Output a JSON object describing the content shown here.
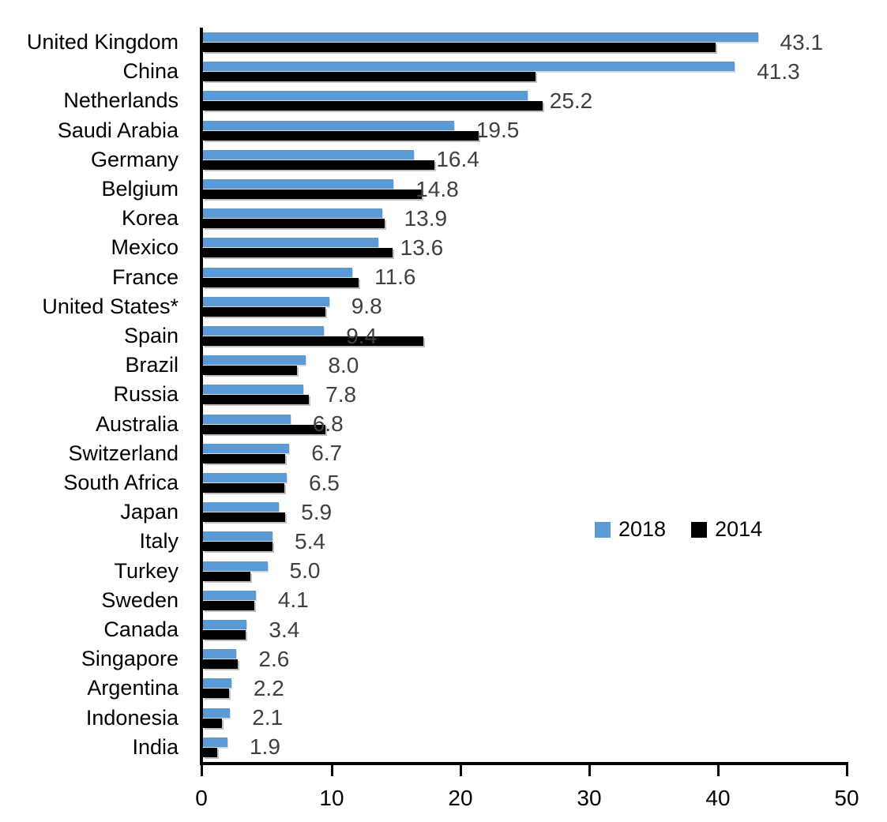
{
  "chart_data": {
    "type": "bar",
    "orientation": "horizontal",
    "title": "",
    "xlabel": "",
    "ylabel": "",
    "xlim": [
      0,
      50
    ],
    "x_ticks": [
      "0",
      "10",
      "20",
      "30",
      "40",
      "50"
    ],
    "grid": false,
    "legend_position": "center-right",
    "categories": [
      "United Kingdom",
      "China",
      "Netherlands",
      "Saudi Arabia",
      "Germany",
      "Belgium",
      "Korea",
      "Mexico",
      "France",
      "United States*",
      "Spain",
      "Brazil",
      "Russia",
      "Australia",
      "Switzerland",
      "South Africa",
      "Japan",
      "Italy",
      "Turkey",
      "Sweden",
      "Canada",
      "Singapore",
      "Argentina",
      "Indonesia",
      "India"
    ],
    "series": [
      {
        "name": "2018",
        "color": "#5B9BD5",
        "values": [
          43.1,
          41.3,
          25.2,
          19.5,
          16.4,
          14.8,
          13.9,
          13.6,
          11.6,
          9.8,
          9.4,
          8.0,
          7.8,
          6.8,
          6.7,
          6.5,
          5.9,
          5.4,
          5.0,
          4.1,
          3.4,
          2.6,
          2.2,
          2.1,
          1.9
        ]
      },
      {
        "name": "2014",
        "color": "#000000",
        "values": [
          39.8,
          25.8,
          26.4,
          21.4,
          18.0,
          17.0,
          14.1,
          14.7,
          12.1,
          9.5,
          17.1,
          7.3,
          8.2,
          9.5,
          6.4,
          6.3,
          6.4,
          5.4,
          3.7,
          4.0,
          3.3,
          2.7,
          2.0,
          1.5,
          1.1
        ]
      }
    ],
    "value_labels": [
      "43.1",
      "41.3",
      "25.2",
      "19.5",
      "16.4",
      "14.8",
      "13.9",
      "13.6",
      "11.6",
      "9.8",
      "9.4",
      "8.0",
      "7.8",
      "6.8",
      "6.7",
      "6.5",
      "5.9",
      "5.4",
      "5.0",
      "4.1",
      "3.4",
      "2.6",
      "2.2",
      "2.1",
      "1.9"
    ],
    "value_label_series": "2018"
  },
  "colors": {
    "series_2018": "#5B9BD5",
    "series_2014": "#000000",
    "value_label_text": "#404040",
    "axis": "#000000",
    "background": "#ffffff"
  },
  "legend": {
    "entries": [
      {
        "label": "2018",
        "color": "#5B9BD5"
      },
      {
        "label": "2014",
        "color": "#000000"
      }
    ]
  }
}
